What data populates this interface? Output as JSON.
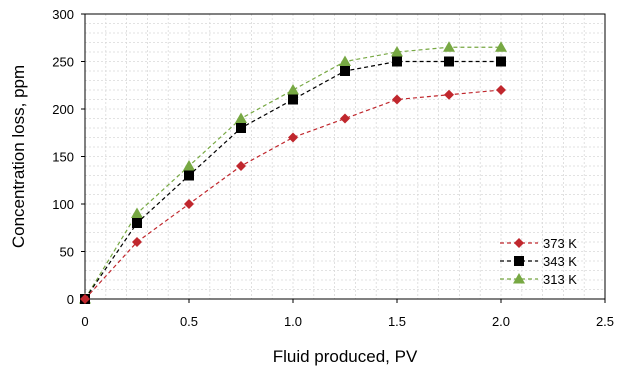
{
  "chart_data": {
    "type": "line",
    "xlabel": "Fluid produced, PV",
    "ylabel": "Concentration loss, ppm",
    "xlim": [
      0,
      2.5
    ],
    "ylim": [
      0,
      300
    ],
    "x_ticks": [
      "0",
      "0.5",
      "1.0",
      "1.5",
      "2.0",
      "2.5"
    ],
    "y_ticks": [
      "0",
      "50",
      "100",
      "150",
      "200",
      "250",
      "300"
    ],
    "grid": true,
    "legend_position": "bottom-right",
    "line_style": "dashed",
    "series": [
      {
        "name": "373 K",
        "color": "#c0272d",
        "marker": "diamond",
        "x": [
          0,
          0.25,
          0.5,
          0.75,
          1.0,
          1.25,
          1.5,
          1.75,
          2.0
        ],
        "y": [
          0,
          60,
          100,
          140,
          170,
          190,
          210,
          215,
          220
        ]
      },
      {
        "name": "343 K",
        "color": "#000000",
        "marker": "square",
        "x": [
          0,
          0.25,
          0.5,
          0.75,
          1.0,
          1.25,
          1.5,
          1.75,
          2.0
        ],
        "y": [
          0,
          80,
          130,
          180,
          210,
          240,
          250,
          250,
          250
        ]
      },
      {
        "name": "313 K",
        "color": "#77a843",
        "marker": "triangle",
        "x": [
          0,
          0.25,
          0.5,
          0.75,
          1.0,
          1.25,
          1.5,
          1.75,
          2.0
        ],
        "y": [
          0,
          90,
          140,
          190,
          220,
          250,
          260,
          265,
          265
        ]
      }
    ]
  }
}
